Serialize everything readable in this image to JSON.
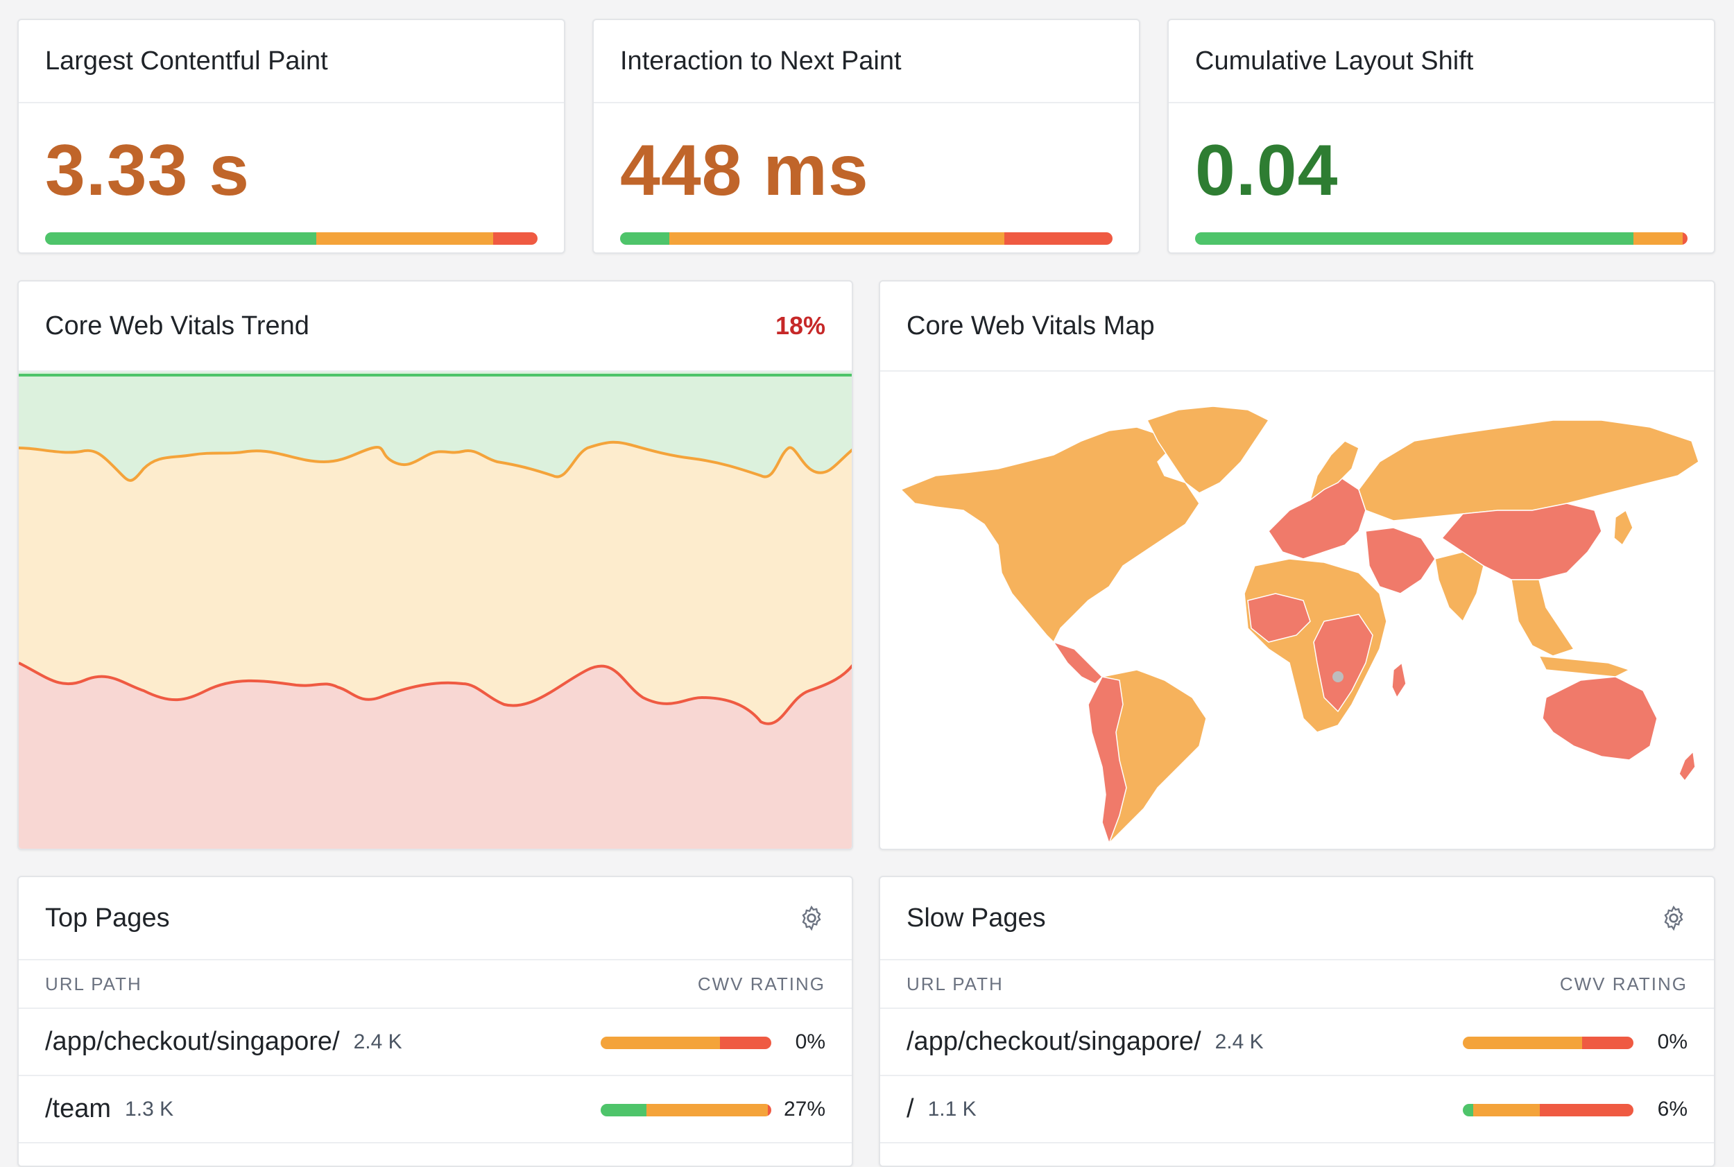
{
  "colors": {
    "good": "#4ec46a",
    "needs_improvement": "#f4a33a",
    "poor": "#ef5a42",
    "warn_text": "#c0652a",
    "good_text": "#2e7d32",
    "badge_red": "#c62828"
  },
  "metrics": [
    {
      "title": "Largest Contentful Paint",
      "value": "3.33 s",
      "tone": "warn",
      "distribution": [
        0.55,
        0.36,
        0.09
      ]
    },
    {
      "title": "Interaction to Next Paint",
      "value": "448 ms",
      "tone": "warn",
      "distribution": [
        0.1,
        0.68,
        0.22
      ]
    },
    {
      "title": "Cumulative Layout Shift",
      "value": "0.04",
      "tone": "good",
      "distribution": [
        0.89,
        0.1,
        0.01
      ]
    }
  ],
  "trend": {
    "title": "Core Web Vitals Trend",
    "badge": "18%"
  },
  "map": {
    "title": "Core Web Vitals Map",
    "legend_colors": {
      "orange": "#f6b25c",
      "red": "#f07a6a",
      "gray": "#bdbdbd"
    }
  },
  "top_pages": {
    "title": "Top Pages",
    "settings_icon": "gear-icon",
    "col_url": "URL PATH",
    "col_rating": "CWV RATING",
    "rows": [
      {
        "path": "/app/checkout/singapore/",
        "count": "2.4 K",
        "pct": "0%",
        "distribution": [
          0,
          0.7,
          0.3
        ]
      },
      {
        "path": "/team",
        "count": "1.3 K",
        "pct": "27%",
        "distribution": [
          0.27,
          0.71,
          0.02
        ]
      }
    ]
  },
  "slow_pages": {
    "title": "Slow Pages",
    "settings_icon": "gear-icon",
    "col_url": "URL PATH",
    "col_rating": "CWV RATING",
    "rows": [
      {
        "path": "/app/checkout/singapore/",
        "count": "2.4 K",
        "pct": "0%",
        "distribution": [
          0,
          0.7,
          0.3
        ]
      },
      {
        "path": "/",
        "count": "1.1 K",
        "pct": "6%",
        "distribution": [
          0.06,
          0.39,
          0.55
        ]
      }
    ]
  }
}
